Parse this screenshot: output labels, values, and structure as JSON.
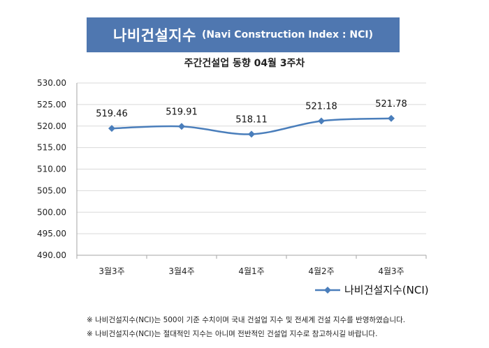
{
  "header": {
    "title_main": "나비건설지수",
    "title_sub": "(Navi Construction Index : NCI)"
  },
  "chart_data": {
    "type": "line",
    "subtitle": "주간건설업 동향 04월 3주차",
    "categories": [
      "3월3주",
      "3월4주",
      "4월1주",
      "4월2주",
      "4월3주"
    ],
    "series": [
      {
        "name": "나비건설지수(NCI)",
        "values": [
          519.46,
          519.91,
          518.11,
          521.18,
          521.78
        ],
        "color": "#4a7ebb"
      }
    ],
    "data_labels": [
      "519.46",
      "519.91",
      "518.11",
      "521.18",
      "521.78"
    ],
    "ylim": [
      490,
      530
    ],
    "y_ticks": [
      "490.00",
      "495.00",
      "500.00",
      "505.00",
      "510.00",
      "515.00",
      "520.00",
      "525.00",
      "530.00"
    ],
    "grid": "horizontal",
    "legend": "bottom-right",
    "marker": "diamond"
  },
  "notes": [
    "※ 나비건설지수(NCI)는 500이 기준 수치이며 국내 건설업 지수 및 전세계 건설 지수를 반영하였습니다.",
    "※ 나비건설지수(NCI)는 절대적인 지수는 아니며 전반적인 건설업 지수로 참고하시길 바랍니다."
  ],
  "colors": {
    "header_bg": "#4f77b0",
    "series": "#4a7ebb",
    "grid": "#d9d9d9"
  }
}
